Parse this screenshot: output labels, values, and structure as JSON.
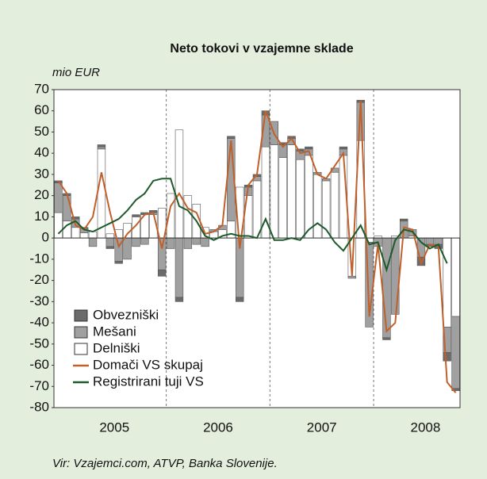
{
  "chart_data": {
    "type": "bar",
    "title": "Neto tokovi v vzajemne sklade",
    "y_label": "mio EUR",
    "source": "Vir: Vzajemci.com, ATVP, Banka Slovenije.",
    "years": [
      "2005",
      "2006",
      "2007",
      "2008"
    ],
    "ylim": [
      -80,
      70
    ],
    "yticks": [
      -80,
      -70,
      -60,
      -50,
      -40,
      -30,
      -20,
      -10,
      0,
      10,
      20,
      30,
      40,
      50,
      60,
      70
    ],
    "legend": "lower-left",
    "series": [
      {
        "name": "Obvezniški",
        "type": "bar",
        "color": "#6b6b6b",
        "values": [
          1,
          1,
          1,
          0.5,
          0,
          1,
          -1,
          -1,
          0,
          1,
          1,
          1,
          -3,
          0,
          -2,
          0,
          0,
          0,
          0,
          0,
          1,
          -2,
          1,
          1,
          2,
          0,
          1,
          1,
          1,
          1,
          0,
          0,
          0,
          1,
          0,
          1,
          0,
          0,
          -1,
          0,
          1,
          0,
          -4,
          -1,
          -2,
          -4,
          -1
        ]
      },
      {
        "name": "Mešani",
        "type": "bar",
        "color": "#a0a0a0",
        "values": [
          14,
          12,
          4,
          2,
          -4,
          1,
          -4,
          -11,
          -10,
          -4,
          -3,
          1,
          -15,
          -5,
          -28,
          -5,
          -3,
          -4,
          1,
          2,
          39,
          -28,
          4,
          2,
          15,
          11,
          6,
          3,
          4,
          3,
          1,
          1,
          2,
          3,
          -1,
          18,
          -40,
          -4,
          -47,
          -36,
          8,
          3,
          -9,
          -3,
          -3,
          -12,
          -34
        ]
      },
      {
        "name": "Delniški",
        "type": "bar",
        "color": "#ffffff",
        "values": [
          12,
          8,
          5,
          2.5,
          3,
          42,
          2,
          4,
          7,
          10,
          11,
          11,
          14,
          21,
          51,
          20,
          16,
          5,
          3,
          4,
          8,
          24,
          20,
          27,
          43,
          44,
          38,
          44,
          37,
          39,
          30,
          27,
          31,
          39,
          -18,
          46,
          -2,
          1,
          0,
          1,
          0,
          1,
          0,
          0,
          0,
          -42,
          -37
        ]
      },
      {
        "name": "Domači VS skupaj",
        "type": "line",
        "color": "#c0602a",
        "values": [
          27,
          21,
          6,
          4,
          10,
          31,
          12,
          -4,
          2,
          6,
          11,
          12,
          -5,
          15,
          21,
          14,
          12,
          2,
          3,
          6,
          46,
          -5,
          25,
          30,
          60,
          49,
          43,
          47,
          40,
          41,
          30,
          28,
          34,
          40,
          -18,
          65,
          -37,
          -3,
          -44,
          -40,
          5,
          4,
          -12,
          -3,
          -4,
          -68,
          -73
        ]
      },
      {
        "name": "Registrirani tuji VS",
        "type": "line",
        "color": "#1e5a2a",
        "values": [
          2,
          6,
          8,
          4,
          3,
          5,
          7,
          9,
          13,
          18,
          21,
          27,
          28,
          28,
          15,
          13,
          8,
          1,
          -1,
          1,
          2,
          1,
          1,
          0,
          9,
          -1,
          -1,
          0,
          -1,
          4,
          7,
          4,
          -2,
          -6,
          0,
          6,
          -3,
          -2,
          -15,
          -1,
          4,
          3,
          -2,
          -5,
          -3,
          -12,
          null
        ]
      }
    ]
  }
}
